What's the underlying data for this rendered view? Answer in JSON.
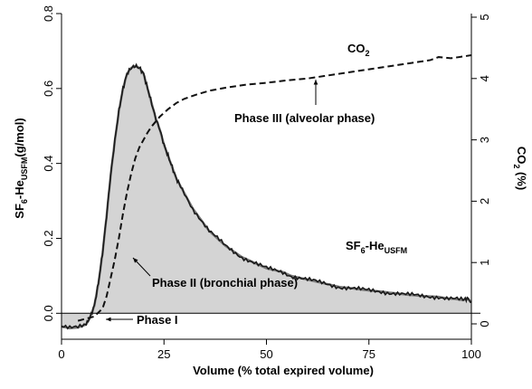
{
  "chart_data": {
    "type": "line",
    "xlabel": "Volume (% total expired volume)",
    "ylabel_left": {
      "main": "SF",
      "sub1": "6",
      "mid": "-He",
      "sub2": "USFM",
      "tail": "(g/mol)"
    },
    "ylabel_right": {
      "main": "CO",
      "sub": "2",
      "tail": " (%)"
    },
    "xlim": [
      0,
      100
    ],
    "ylim_left": [
      -0.05,
      0.8
    ],
    "ylim_right": [
      0,
      5
    ],
    "x_ticks": [
      0,
      25,
      50,
      75,
      100
    ],
    "y_left_ticks": [
      0.0,
      0.2,
      0.4,
      0.6,
      0.8
    ],
    "y_right_ticks": [
      0,
      1,
      2,
      3,
      4,
      5
    ],
    "x_tick_labels": [
      "0",
      "25",
      "50",
      "75",
      "100"
    ],
    "y_left_tick_labels": [
      "0.0",
      "0.2",
      "0.4",
      "0.6",
      "0.8"
    ],
    "y_right_tick_labels": [
      "0",
      "1",
      "2",
      "3",
      "4",
      "5"
    ],
    "colors": {
      "fill": "#d4d4d4",
      "line_dark": "#1a1a1a",
      "line_gray": "#7a7a7a",
      "co2": "#111111"
    },
    "series": [
      {
        "name": "SF6-He USFM",
        "axis": "left",
        "style": "solid",
        "x": [
          0,
          2,
          4,
          6,
          7,
          8,
          9,
          10,
          11,
          12,
          13,
          14,
          15,
          16,
          17,
          18,
          19,
          20,
          21,
          22,
          23,
          24,
          25,
          26,
          27,
          28,
          29,
          30,
          32,
          34,
          36,
          38,
          40,
          42,
          44,
          46,
          48,
          50,
          52,
          54,
          56,
          58,
          60,
          62,
          64,
          66,
          68,
          70,
          72,
          74,
          76,
          78,
          80,
          82,
          84,
          86,
          88,
          90,
          92,
          94,
          96,
          98,
          99,
          100
        ],
        "values": [
          -0.035,
          -0.04,
          -0.038,
          -0.03,
          -0.01,
          0.02,
          0.08,
          0.16,
          0.26,
          0.37,
          0.46,
          0.54,
          0.6,
          0.64,
          0.655,
          0.66,
          0.655,
          0.64,
          0.6,
          0.56,
          0.52,
          0.49,
          0.45,
          0.42,
          0.39,
          0.36,
          0.34,
          0.32,
          0.28,
          0.25,
          0.22,
          0.2,
          0.18,
          0.165,
          0.15,
          0.14,
          0.13,
          0.12,
          0.115,
          0.11,
          0.1,
          0.095,
          0.09,
          0.085,
          0.08,
          0.075,
          0.07,
          0.068,
          0.065,
          0.062,
          0.06,
          0.058,
          0.055,
          0.053,
          0.05,
          0.048,
          0.046,
          0.045,
          0.044,
          0.04,
          0.038,
          0.035,
          0.04,
          0.03
        ]
      },
      {
        "name": "CO2",
        "axis": "right",
        "style": "dashed",
        "x": [
          4,
          8,
          10,
          11,
          12,
          13,
          14,
          15,
          16,
          17,
          18,
          19,
          20,
          21,
          22,
          24,
          26,
          28,
          30,
          33,
          36,
          40,
          45,
          50,
          55,
          60,
          65,
          70,
          75,
          80,
          85,
          90,
          92,
          95,
          98,
          100
        ],
        "values": [
          0.05,
          0.12,
          0.25,
          0.45,
          0.75,
          1.05,
          1.4,
          1.8,
          2.15,
          2.45,
          2.7,
          2.88,
          3.0,
          3.12,
          3.22,
          3.38,
          3.5,
          3.6,
          3.67,
          3.74,
          3.8,
          3.85,
          3.9,
          3.93,
          3.97,
          4.0,
          4.05,
          4.1,
          4.15,
          4.2,
          4.25,
          4.3,
          4.35,
          4.33,
          4.36,
          4.38
        ]
      }
    ],
    "annotations": {
      "co2_label": {
        "main": "CO",
        "sub": "2"
      },
      "sf6_label": {
        "main": "SF",
        "sub1": "6",
        "mid": "-He",
        "sub2": "USFM"
      },
      "phase3": "Phase III (alveolar phase)",
      "phase2": "Phase II (bronchial phase)",
      "phase1": "Phase I"
    }
  }
}
